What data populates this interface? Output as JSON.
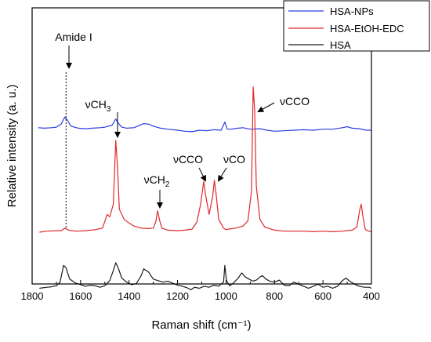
{
  "chart_data": {
    "type": "line",
    "xlabel": "Raman shift (cm⁻¹)",
    "ylabel": "Relative intensity (a. u.)",
    "xlim": [
      1800,
      400
    ],
    "x_reversed": true,
    "xticks": [
      1800,
      1600,
      1400,
      1200,
      1000,
      800,
      600,
      400
    ],
    "yticks_shown": false,
    "grid": false,
    "legend_position": "top-right",
    "series": [
      {
        "name": "HSA-NPs",
        "color": "#2a3de0",
        "y_offset": 2.0,
        "points": [
          [
            1800,
            null
          ],
          [
            1775,
            0.05
          ],
          [
            1750,
            0.04
          ],
          [
            1720,
            0.05
          ],
          [
            1700,
            0.06
          ],
          [
            1680,
            0.12
          ],
          [
            1665,
            0.26
          ],
          [
            1655,
            0.2
          ],
          [
            1640,
            0.08
          ],
          [
            1610,
            0.04
          ],
          [
            1580,
            0.03
          ],
          [
            1550,
            0.04
          ],
          [
            1520,
            0.05
          ],
          [
            1500,
            0.06
          ],
          [
            1470,
            0.1
          ],
          [
            1455,
            0.22
          ],
          [
            1445,
            0.14
          ],
          [
            1430,
            0.06
          ],
          [
            1410,
            0.04
          ],
          [
            1380,
            0.05
          ],
          [
            1340,
            0.13
          ],
          [
            1320,
            0.12
          ],
          [
            1300,
            0.08
          ],
          [
            1270,
            0.04
          ],
          [
            1240,
            0.02
          ],
          [
            1200,
            0.0
          ],
          [
            1170,
            -0.02
          ],
          [
            1140,
            -0.03
          ],
          [
            1110,
            0.0
          ],
          [
            1080,
            -0.01
          ],
          [
            1050,
            0.01
          ],
          [
            1020,
            0.0
          ],
          [
            1005,
            0.16
          ],
          [
            995,
            0.02
          ],
          [
            980,
            0.02
          ],
          [
            950,
            0.04
          ],
          [
            930,
            0.05
          ],
          [
            900,
            0.02
          ],
          [
            860,
            0.03
          ],
          [
            830,
            0.0
          ],
          [
            800,
            -0.02
          ],
          [
            760,
            -0.01
          ],
          [
            720,
            0.0
          ],
          [
            680,
            0.01
          ],
          [
            640,
            0.0
          ],
          [
            600,
            0.02
          ],
          [
            560,
            0.02
          ],
          [
            520,
            0.05
          ],
          [
            500,
            0.07
          ],
          [
            480,
            0.04
          ],
          [
            450,
            0.03
          ],
          [
            420,
            0.0
          ],
          [
            400,
            0.0
          ]
        ]
      },
      {
        "name": "HSA-EtOH-EDC",
        "color": "#e0292b",
        "y_offset": 0.0,
        "points": [
          [
            1800,
            null
          ],
          [
            1770,
            0.0
          ],
          [
            1740,
            0.02
          ],
          [
            1700,
            0.03
          ],
          [
            1680,
            0.03
          ],
          [
            1665,
            0.08
          ],
          [
            1650,
            0.04
          ],
          [
            1620,
            0.02
          ],
          [
            1580,
            0.03
          ],
          [
            1540,
            0.05
          ],
          [
            1510,
            0.08
          ],
          [
            1490,
            0.35
          ],
          [
            1480,
            0.3
          ],
          [
            1465,
            0.55
          ],
          [
            1455,
            1.8
          ],
          [
            1448,
            1.3
          ],
          [
            1440,
            0.45
          ],
          [
            1420,
            0.25
          ],
          [
            1400,
            0.18
          ],
          [
            1380,
            0.12
          ],
          [
            1350,
            0.08
          ],
          [
            1320,
            0.07
          ],
          [
            1300,
            0.08
          ],
          [
            1290,
            0.2
          ],
          [
            1282,
            0.42
          ],
          [
            1275,
            0.25
          ],
          [
            1265,
            0.08
          ],
          [
            1240,
            0.04
          ],
          [
            1200,
            0.03
          ],
          [
            1170,
            0.04
          ],
          [
            1140,
            0.06
          ],
          [
            1120,
            0.2
          ],
          [
            1105,
            0.55
          ],
          [
            1092,
            1.0
          ],
          [
            1085,
            0.75
          ],
          [
            1070,
            0.35
          ],
          [
            1055,
            0.7
          ],
          [
            1048,
            1.02
          ],
          [
            1040,
            0.7
          ],
          [
            1030,
            0.25
          ],
          [
            1010,
            0.08
          ],
          [
            1000,
            0.05
          ],
          [
            990,
            0.06
          ],
          [
            960,
            0.08
          ],
          [
            930,
            0.12
          ],
          [
            910,
            0.22
          ],
          [
            895,
            0.8
          ],
          [
            888,
            2.85
          ],
          [
            882,
            2.4
          ],
          [
            875,
            0.9
          ],
          [
            860,
            0.25
          ],
          [
            840,
            0.1
          ],
          [
            800,
            0.04
          ],
          [
            760,
            0.02
          ],
          [
            720,
            0.02
          ],
          [
            680,
            0.02
          ],
          [
            640,
            0.01
          ],
          [
            600,
            0.02
          ],
          [
            560,
            0.01
          ],
          [
            520,
            0.02
          ],
          [
            480,
            0.04
          ],
          [
            460,
            0.1
          ],
          [
            448,
            0.45
          ],
          [
            442,
            0.55
          ],
          [
            435,
            0.3
          ],
          [
            425,
            0.05
          ],
          [
            410,
            0.02
          ],
          [
            400,
            0.01
          ]
        ]
      },
      {
        "name": "HSA",
        "color": "#1a1a1a",
        "y_offset": -1.1,
        "points": [
          [
            1800,
            null
          ],
          [
            1770,
            0.0
          ],
          [
            1740,
            0.02
          ],
          [
            1720,
            0.03
          ],
          [
            1700,
            0.05
          ],
          [
            1685,
            0.12
          ],
          [
            1670,
            0.45
          ],
          [
            1660,
            0.4
          ],
          [
            1645,
            0.18
          ],
          [
            1620,
            0.1
          ],
          [
            1600,
            0.07
          ],
          [
            1580,
            0.04
          ],
          [
            1560,
            0.06
          ],
          [
            1540,
            0.05
          ],
          [
            1520,
            0.02
          ],
          [
            1500,
            0.05
          ],
          [
            1480,
            0.15
          ],
          [
            1465,
            0.35
          ],
          [
            1455,
            0.5
          ],
          [
            1445,
            0.4
          ],
          [
            1430,
            0.2
          ],
          [
            1410,
            0.12
          ],
          [
            1390,
            0.07
          ],
          [
            1370,
            0.09
          ],
          [
            1350,
            0.25
          ],
          [
            1340,
            0.38
          ],
          [
            1320,
            0.32
          ],
          [
            1300,
            0.18
          ],
          [
            1280,
            0.15
          ],
          [
            1260,
            0.12
          ],
          [
            1240,
            0.14
          ],
          [
            1220,
            0.1
          ],
          [
            1200,
            0.06
          ],
          [
            1180,
            0.04
          ],
          [
            1160,
            0.01
          ],
          [
            1145,
            -0.03
          ],
          [
            1130,
            0.02
          ],
          [
            1110,
            0.0
          ],
          [
            1090,
            0.04
          ],
          [
            1070,
            0.02
          ],
          [
            1050,
            0.06
          ],
          [
            1030,
            0.04
          ],
          [
            1020,
            0.08
          ],
          [
            1010,
            0.12
          ],
          [
            1005,
            0.45
          ],
          [
            998,
            0.15
          ],
          [
            985,
            0.05
          ],
          [
            970,
            0.1
          ],
          [
            950,
            0.2
          ],
          [
            935,
            0.3
          ],
          [
            920,
            0.22
          ],
          [
            905,
            0.18
          ],
          [
            890,
            0.14
          ],
          [
            875,
            0.16
          ],
          [
            860,
            0.22
          ],
          [
            850,
            0.25
          ],
          [
            835,
            0.18
          ],
          [
            820,
            0.14
          ],
          [
            800,
            0.12
          ],
          [
            780,
            0.16
          ],
          [
            760,
            0.06
          ],
          [
            740,
            0.05
          ],
          [
            720,
            0.12
          ],
          [
            700,
            0.08
          ],
          [
            680,
            0.04
          ],
          [
            660,
            0.0
          ],
          [
            640,
            0.04
          ],
          [
            620,
            0.08
          ],
          [
            600,
            0.02
          ],
          [
            580,
            0.04
          ],
          [
            560,
            0.0
          ],
          [
            540,
            0.04
          ],
          [
            520,
            0.15
          ],
          [
            505,
            0.2
          ],
          [
            490,
            0.14
          ],
          [
            470,
            0.08
          ],
          [
            450,
            0.04
          ],
          [
            430,
            0.02
          ],
          [
            410,
            0.02
          ],
          [
            400,
            0.0
          ]
        ]
      }
    ],
    "reference_line": {
      "x": 1660,
      "style": "dotted"
    },
    "annotations": [
      {
        "id": "amide",
        "label": "Amide I",
        "x": 1660
      },
      {
        "id": "ch3",
        "label_main": "νCH",
        "label_sub": "3",
        "x": 1455
      },
      {
        "id": "ch2",
        "label_main": "νCH",
        "label_sub": "2",
        "x": 1282
      },
      {
        "id": "cco1",
        "label_main": "νCCO",
        "label_sub": "",
        "x": 1092
      },
      {
        "id": "co",
        "label_main": "νCO",
        "label_sub": "",
        "x": 1048
      },
      {
        "id": "cco2",
        "label_main": "νCCO",
        "label_sub": "",
        "x": 888
      }
    ]
  }
}
